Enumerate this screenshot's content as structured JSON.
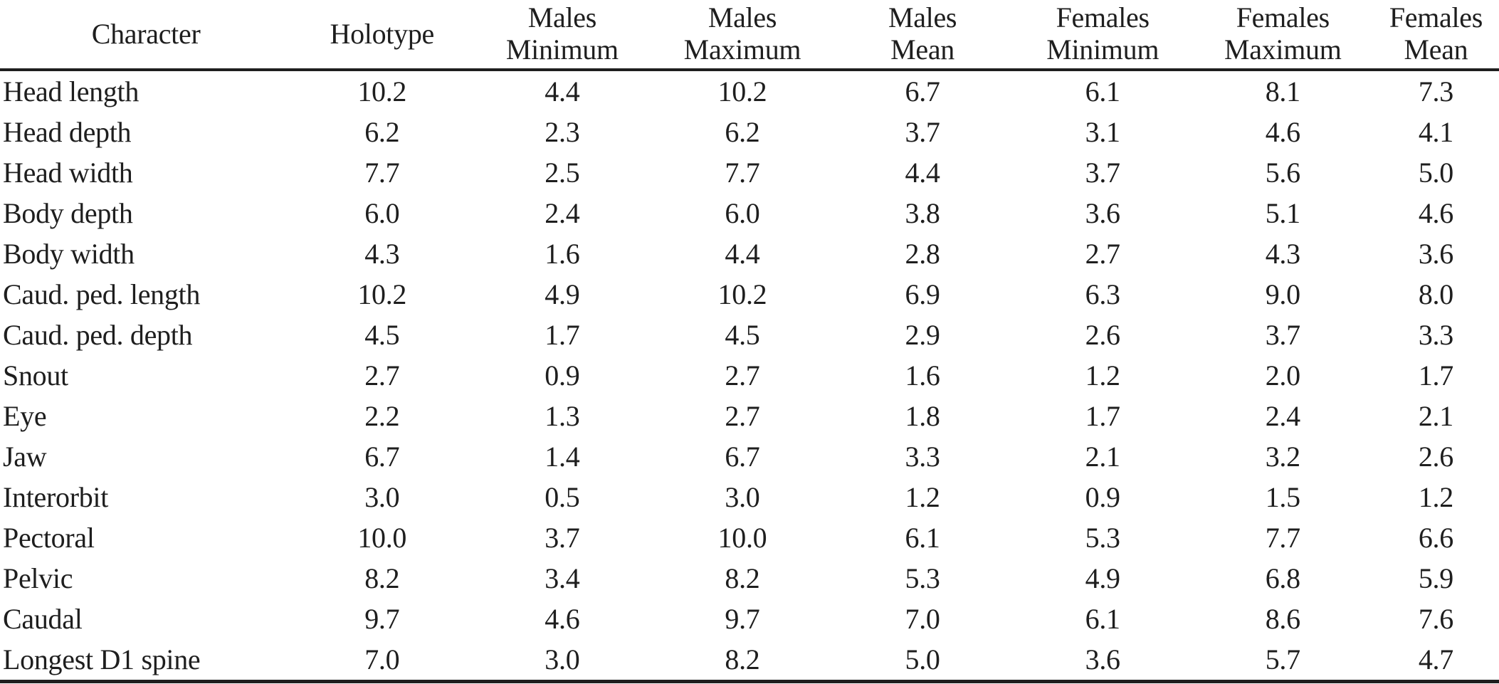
{
  "page": {
    "background_color": "#ffffff",
    "text_color": "#1e1e1e",
    "rule_color": "#1e1e1e"
  },
  "table": {
    "columns": [
      {
        "id": "character",
        "label": "Character"
      },
      {
        "id": "holotype",
        "label": "Holotype"
      },
      {
        "id": "males-minimum",
        "label": "Males\nMinimum"
      },
      {
        "id": "males-maximum",
        "label": "Males\nMaximum"
      },
      {
        "id": "males-mean",
        "label": "Males\nMean"
      },
      {
        "id": "females-minimum",
        "label": "Females\nMinimum"
      },
      {
        "id": "females-maximum",
        "label": "Females\nMaximum"
      },
      {
        "id": "females-mean",
        "label": "Females\nMean"
      }
    ],
    "rows": [
      {
        "character": "Head length",
        "values": [
          "10.2",
          "4.4",
          "10.2",
          "6.7",
          "6.1",
          "8.1",
          "7.3"
        ]
      },
      {
        "character": "Head depth",
        "values": [
          "6.2",
          "2.3",
          "6.2",
          "3.7",
          "3.1",
          "4.6",
          "4.1"
        ]
      },
      {
        "character": "Head width",
        "values": [
          "7.7",
          "2.5",
          "7.7",
          "4.4",
          "3.7",
          "5.6",
          "5.0"
        ]
      },
      {
        "character": "Body depth",
        "values": [
          "6.0",
          "2.4",
          "6.0",
          "3.8",
          "3.6",
          "5.1",
          "4.6"
        ]
      },
      {
        "character": "Body width",
        "values": [
          "4.3",
          "1.6",
          "4.4",
          "2.8",
          "2.7",
          "4.3",
          "3.6"
        ]
      },
      {
        "character": "Caud. ped. length",
        "values": [
          "10.2",
          "4.9",
          "10.2",
          "6.9",
          "6.3",
          "9.0",
          "8.0"
        ]
      },
      {
        "character": "Caud. ped. depth",
        "values": [
          "4.5",
          "1.7",
          "4.5",
          "2.9",
          "2.6",
          "3.7",
          "3.3"
        ]
      },
      {
        "character": "Snout",
        "values": [
          "2.7",
          "0.9",
          "2.7",
          "1.6",
          "1.2",
          "2.0",
          "1.7"
        ]
      },
      {
        "character": "Eye",
        "values": [
          "2.2",
          "1.3",
          "2.7",
          "1.8",
          "1.7",
          "2.4",
          "2.1"
        ]
      },
      {
        "character": "Jaw",
        "values": [
          "6.7",
          "1.4",
          "6.7",
          "3.3",
          "2.1",
          "3.2",
          "2.6"
        ]
      },
      {
        "character": "Interorbit",
        "values": [
          "3.0",
          "0.5",
          "3.0",
          "1.2",
          "0.9",
          "1.5",
          "1.2"
        ]
      },
      {
        "character": "Pectoral",
        "values": [
          "10.0",
          "3.7",
          "10.0",
          "6.1",
          "5.3",
          "7.7",
          "6.6"
        ]
      },
      {
        "character": "Pelvic",
        "values": [
          "8.2",
          "3.4",
          "8.2",
          "5.3",
          "4.9",
          "6.8",
          "5.9"
        ]
      },
      {
        "character": "Caudal",
        "values": [
          "9.7",
          "4.6",
          "9.7",
          "7.0",
          "6.1",
          "8.6",
          "7.6"
        ]
      },
      {
        "character": "Longest D1 spine",
        "values": [
          "7.0",
          "3.0",
          "8.2",
          "5.0",
          "3.6",
          "5.7",
          "4.7"
        ]
      }
    ]
  }
}
